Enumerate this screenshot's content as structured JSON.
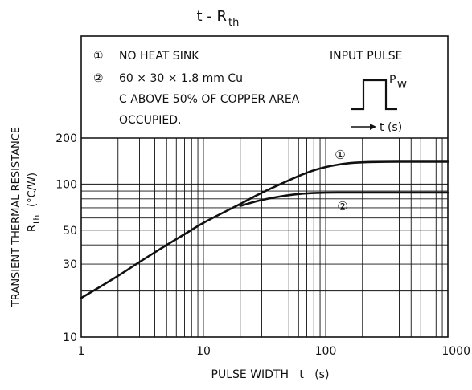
{
  "chart_data": {
    "type": "line",
    "title_main": "t - R",
    "title_sub": "th",
    "xlabel": "PULSE WIDTH   t   (s)",
    "ylabel_line1": "TRANSIENT THERMAL RESISTANCE",
    "ylabel_line2_main": "R",
    "ylabel_line2_sub": "th",
    "ylabel_line2_unit": "(°C/W)",
    "xscale": "log",
    "yscale": "log",
    "xlim": [
      1,
      1000
    ],
    "ylim": [
      10,
      200
    ],
    "x_ticks": [
      {
        "value": 1,
        "label": "1"
      },
      {
        "value": 10,
        "label": "10"
      },
      {
        "value": 100,
        "label": "100"
      },
      {
        "value": 1000,
        "label": "1000"
      }
    ],
    "y_ticks": [
      {
        "value": 10,
        "label": "10"
      },
      {
        "value": 30,
        "label": "30"
      },
      {
        "value": 50,
        "label": "50"
      },
      {
        "value": 100,
        "label": "100"
      },
      {
        "value": 200,
        "label": "200"
      }
    ],
    "grid": true,
    "legend_notes": [
      {
        "marker": "①",
        "text": "NO HEAT SINK"
      },
      {
        "marker": "②",
        "text": "60 × 30 × 1.8 mm Cu"
      },
      {
        "marker": "",
        "text": "C ABOVE 50% OF COPPER AREA"
      },
      {
        "marker": "",
        "text": "OCCUPIED."
      }
    ],
    "inset": {
      "title": "INPUT PULSE",
      "pulse_label_main": "P",
      "pulse_label_sub": "W",
      "axis_label": "t (s)"
    },
    "series": [
      {
        "name": "①",
        "x": [
          1,
          2,
          3,
          5,
          7,
          10,
          15,
          20,
          30,
          50,
          70,
          100,
          150,
          200,
          300,
          500,
          1000
        ],
        "y": [
          18,
          25,
          31,
          40,
          47,
          56,
          66,
          74,
          88,
          106,
          119,
          130,
          137,
          139,
          140,
          140,
          140
        ]
      },
      {
        "name": "②",
        "x": [
          20,
          30,
          50,
          70,
          100,
          150,
          200,
          300,
          500,
          1000
        ],
        "y": [
          72,
          79,
          85,
          87,
          88,
          88,
          88,
          88,
          88,
          88
        ]
      }
    ]
  }
}
